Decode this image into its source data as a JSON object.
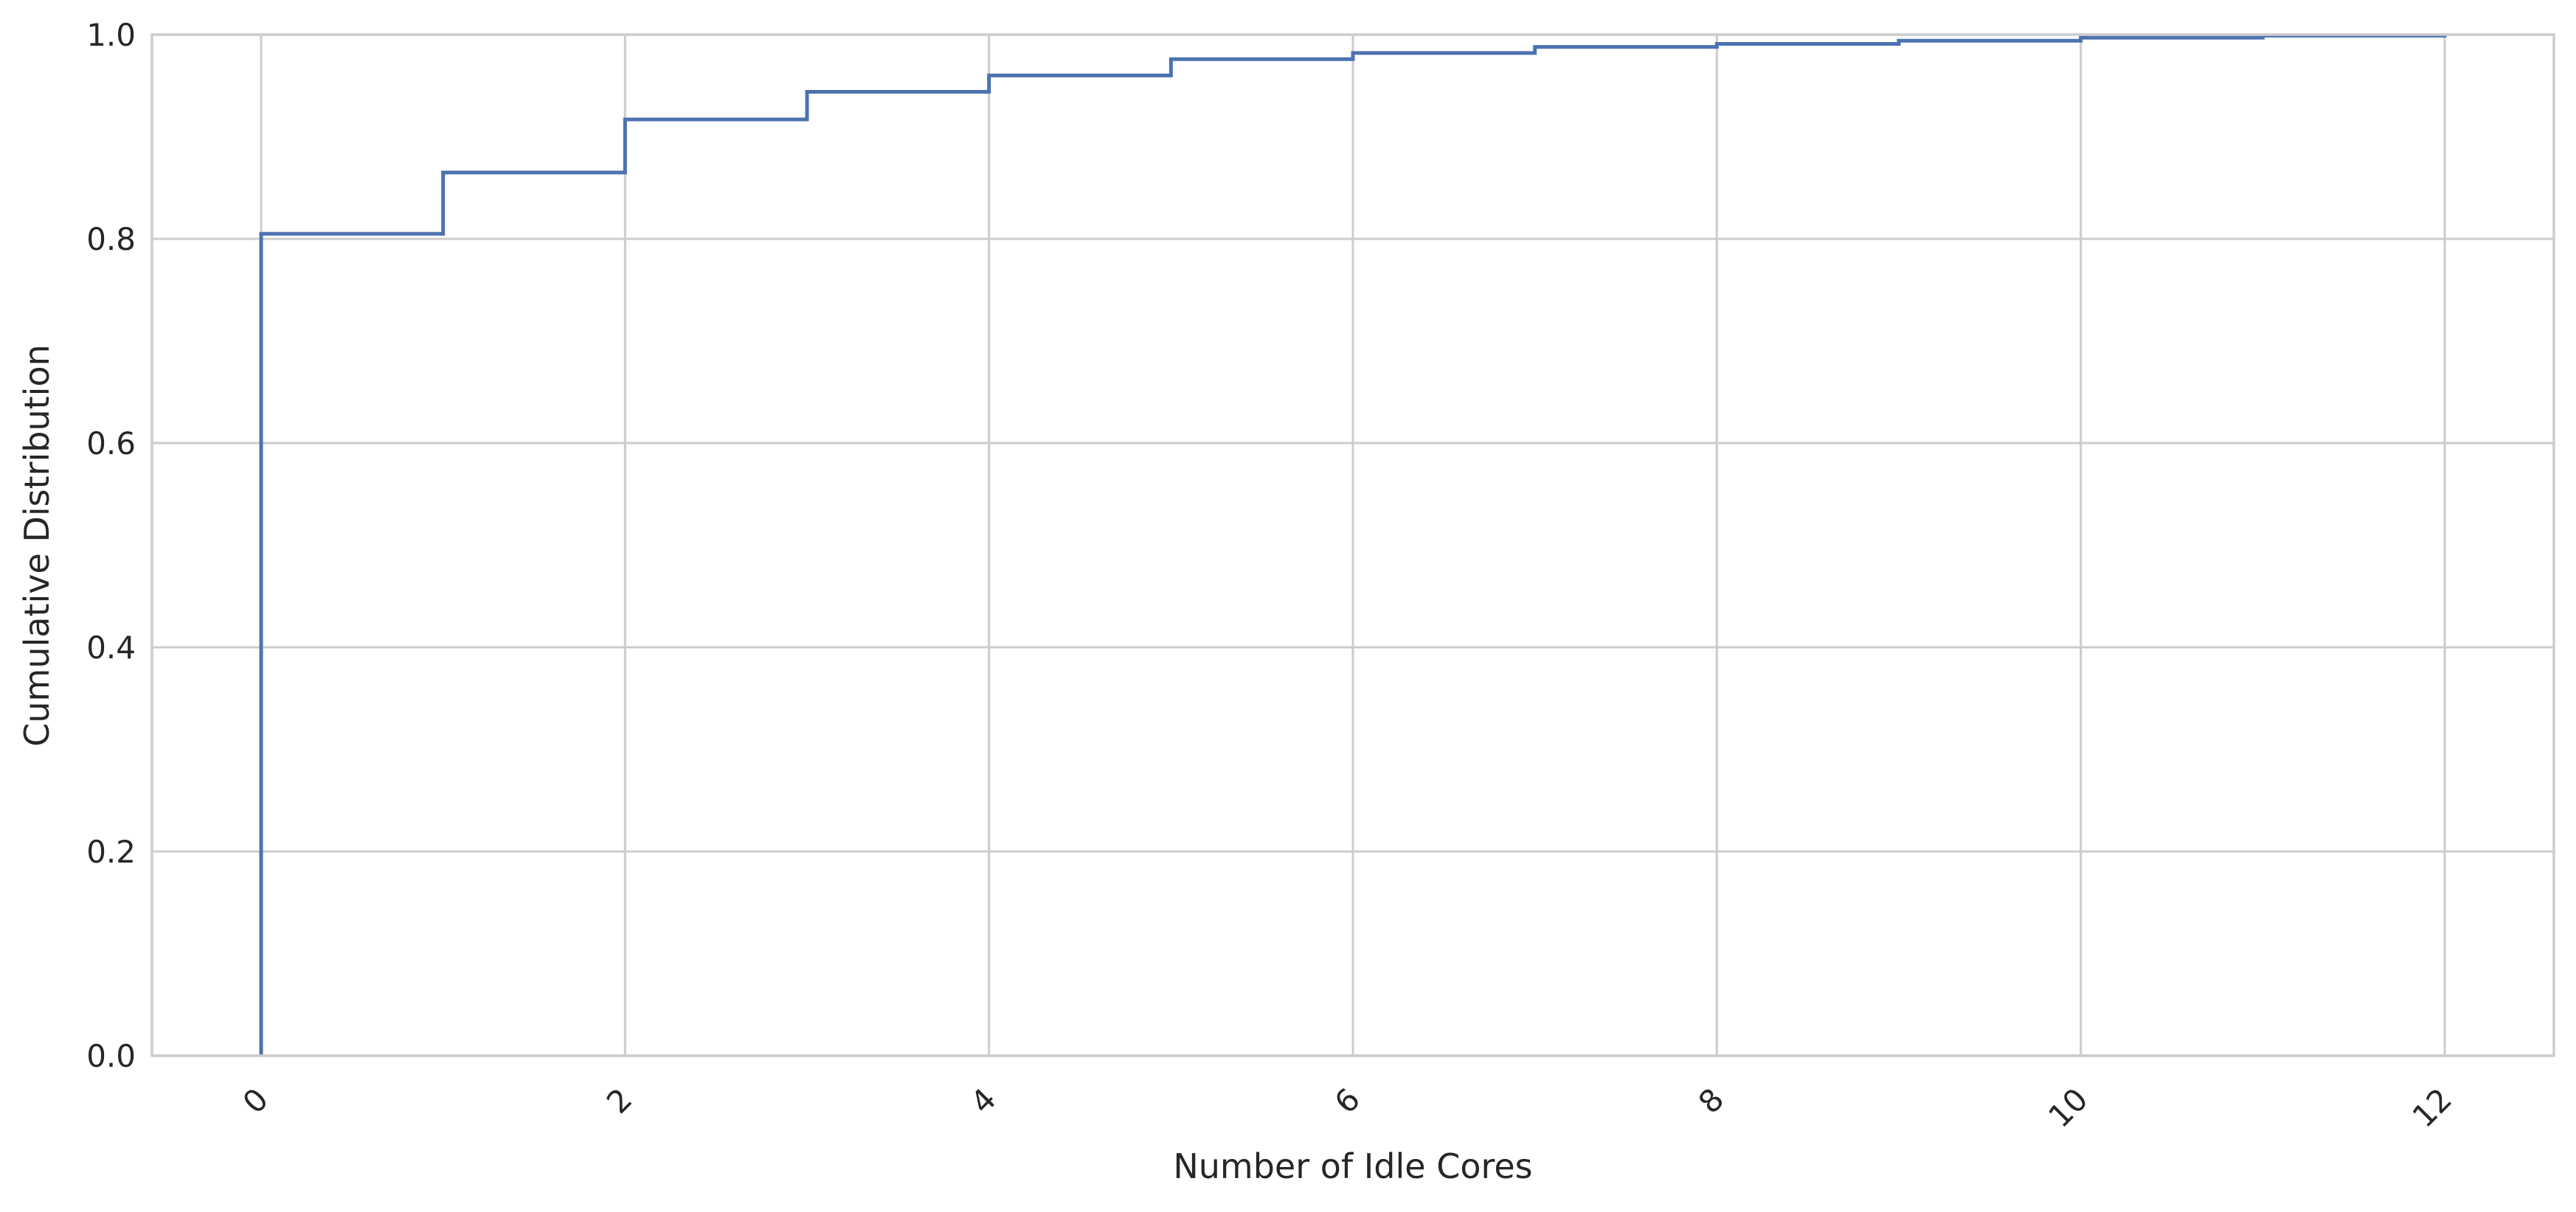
{
  "chart_data": {
    "type": "line",
    "step": true,
    "title": "",
    "xlabel": "Number of Idle Cores",
    "ylabel": "Cumulative Distribution",
    "xlim": [
      -0.6,
      12.6
    ],
    "ylim": [
      0.0,
      1.0
    ],
    "x_ticks": [
      0,
      2,
      4,
      6,
      8,
      10,
      12
    ],
    "x_tick_labels": [
      "0",
      "2",
      "4",
      "6",
      "8",
      "10",
      "12"
    ],
    "y_ticks": [
      0.0,
      0.2,
      0.4,
      0.6,
      0.8,
      1.0
    ],
    "y_tick_labels": [
      "0.0",
      "0.2",
      "0.4",
      "0.6",
      "0.8",
      "1.0"
    ],
    "x_tick_rotation_deg": 45,
    "grid": true,
    "legend": "none",
    "series": [
      {
        "x": [
          0,
          1,
          2,
          3,
          4,
          5,
          6,
          7,
          8,
          9,
          10,
          11,
          12
        ],
        "y": [
          0.805,
          0.865,
          0.917,
          0.944,
          0.96,
          0.976,
          0.982,
          0.988,
          0.991,
          0.994,
          0.997,
          0.999,
          1.0
        ],
        "color": "#4c72b0"
      }
    ]
  }
}
